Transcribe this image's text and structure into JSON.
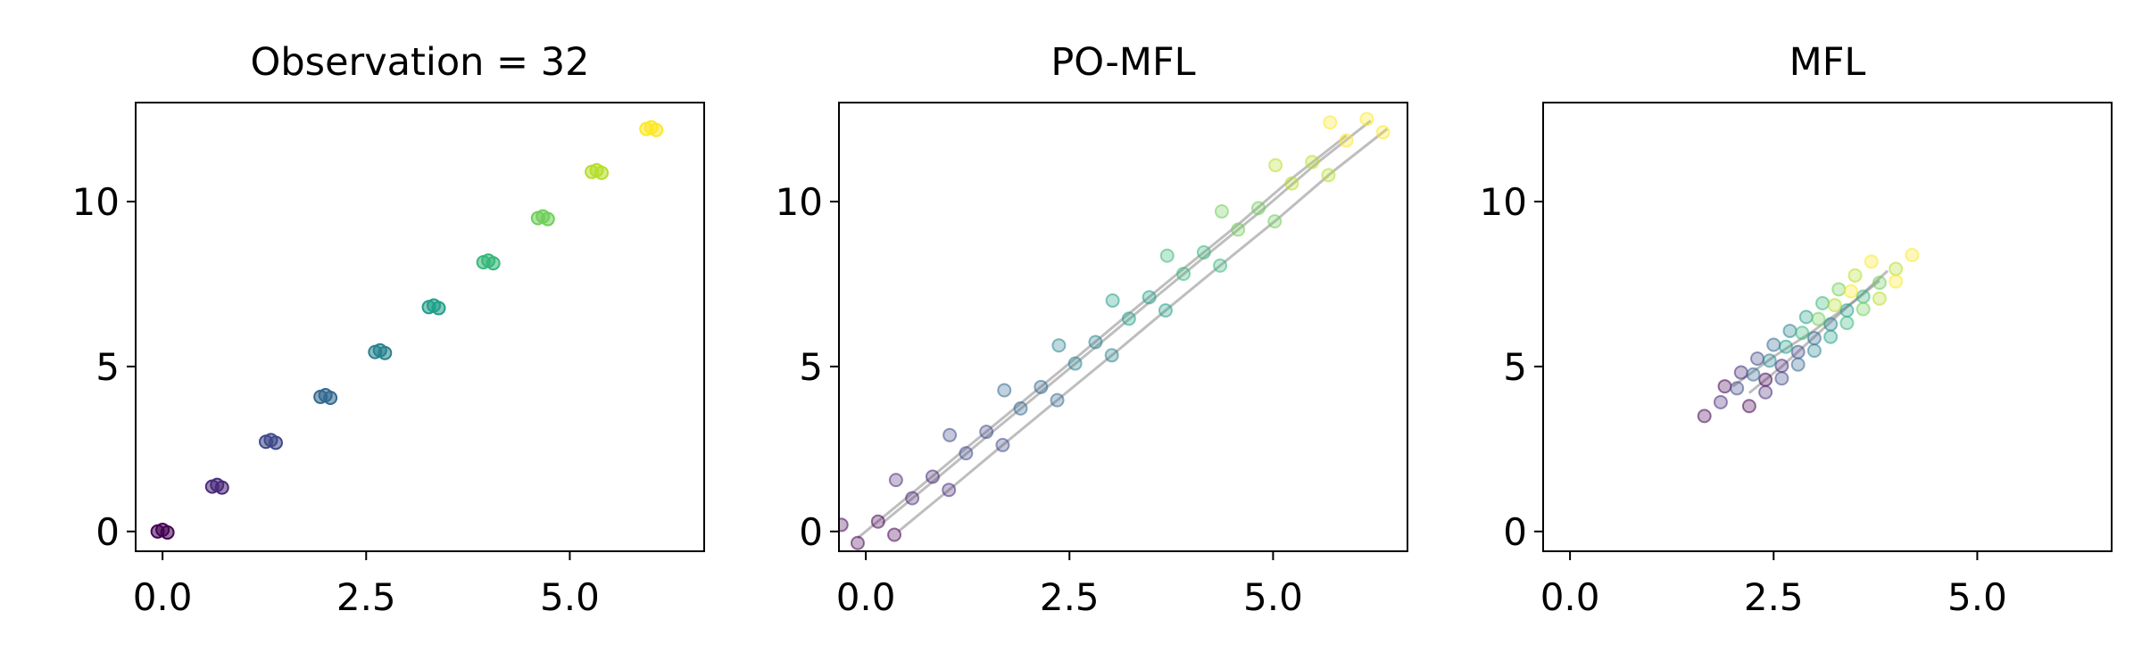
{
  "chart_data": [
    {
      "type": "scatter",
      "title": "Observation = 32",
      "alpha": 0.55,
      "xlim": [
        -0.33,
        6.65
      ],
      "ylim": [
        -0.6,
        13
      ],
      "xticks": [
        {
          "value": 0,
          "label": "0.0"
        },
        {
          "value": 2.5,
          "label": "2.5"
        },
        {
          "value": 5,
          "label": "5.0"
        }
      ],
      "yticks": [
        0,
        5,
        10
      ],
      "series": [
        {
          "color": "#440154",
          "x": [
            -0.06,
            0,
            0.06
          ],
          "values": [
            0,
            0.05,
            -0.03
          ]
        },
        {
          "color": "#482878",
          "x": [
            0.61,
            0.67,
            0.73
          ],
          "values": [
            1.36,
            1.41,
            1.33
          ]
        },
        {
          "color": "#3e4989",
          "x": [
            1.27,
            1.33,
            1.39
          ],
          "values": [
            2.72,
            2.77,
            2.69
          ]
        },
        {
          "color": "#31688e",
          "x": [
            1.94,
            2.0,
            2.06
          ],
          "values": [
            4.08,
            4.13,
            4.05
          ]
        },
        {
          "color": "#26828e",
          "x": [
            2.61,
            2.67,
            2.73
          ],
          "values": [
            5.44,
            5.49,
            5.41
          ]
        },
        {
          "color": "#1f9e89",
          "x": [
            3.27,
            3.33,
            3.39
          ],
          "values": [
            6.8,
            6.85,
            6.77
          ]
        },
        {
          "color": "#35b779",
          "x": [
            3.94,
            4.0,
            4.06
          ],
          "values": [
            8.16,
            8.21,
            8.13
          ]
        },
        {
          "color": "#6ece58",
          "x": [
            4.61,
            4.67,
            4.73
          ],
          "values": [
            9.5,
            9.55,
            9.47
          ]
        },
        {
          "color": "#b5de2b",
          "x": [
            5.27,
            5.33,
            5.39
          ],
          "values": [
            10.9,
            10.95,
            10.87
          ]
        },
        {
          "color": "#fde725",
          "x": [
            5.94,
            6.0,
            6.06
          ],
          "values": [
            12.2,
            12.25,
            12.17
          ]
        }
      ]
    },
    {
      "type": "scatter",
      "title": "PO-MFL",
      "alpha": 0.3,
      "xlim": [
        -0.33,
        6.65
      ],
      "ylim": [
        -0.6,
        13
      ],
      "xticks": [
        {
          "value": 0,
          "label": "0.0"
        },
        {
          "value": 2.5,
          "label": "2.5"
        },
        {
          "value": 5,
          "label": "5.0"
        }
      ],
      "yticks": [
        0,
        5,
        10
      ],
      "trajectories": [
        {
          "color": "#888888",
          "x": [
            -0.1,
            0.57,
            1.23,
            1.9,
            2.57,
            3.23,
            3.9,
            4.57,
            5.23,
            5.9
          ],
          "values": [
            -0.2,
            1.16,
            2.52,
            3.88,
            5.24,
            6.6,
            7.96,
            9.3,
            10.7,
            12.0
          ]
        },
        {
          "color": "#888888",
          "x": [
            0.2,
            0.87,
            1.53,
            2.2,
            2.87,
            3.53,
            4.2,
            4.87,
            5.53,
            6.2
          ],
          "values": [
            0.25,
            1.61,
            2.97,
            4.33,
            5.69,
            7.05,
            8.41,
            9.75,
            11.15,
            12.45
          ]
        },
        {
          "color": "#888888",
          "x": [
            0.4,
            1.07,
            1.73,
            2.4,
            3.07,
            3.73,
            4.4,
            5.07,
            5.73,
            6.4
          ],
          "values": [
            0,
            1.36,
            2.72,
            4.08,
            5.44,
            6.8,
            8.16,
            9.5,
            10.9,
            12.2
          ]
        }
      ],
      "series": [
        {
          "color": "#440154",
          "x": [
            -0.3,
            -0.1,
            0.15,
            0.35
          ],
          "values": [
            0.2,
            -0.35,
            0.3,
            -0.1
          ]
        },
        {
          "color": "#482878",
          "x": [
            0.37,
            0.57,
            0.82,
            1.02
          ],
          "values": [
            1.56,
            1.01,
            1.66,
            1.26
          ]
        },
        {
          "color": "#3e4989",
          "x": [
            1.03,
            1.23,
            1.48,
            1.68
          ],
          "values": [
            2.92,
            2.37,
            3.02,
            2.62
          ]
        },
        {
          "color": "#31688e",
          "x": [
            1.7,
            1.9,
            2.15,
            2.35
          ],
          "values": [
            4.28,
            3.73,
            4.38,
            3.98
          ]
        },
        {
          "color": "#26828e",
          "x": [
            2.37,
            2.57,
            2.82,
            3.02
          ],
          "values": [
            5.64,
            5.09,
            5.74,
            5.34
          ]
        },
        {
          "color": "#1f9e89",
          "x": [
            3.03,
            3.23,
            3.48,
            3.68
          ],
          "values": [
            7.0,
            6.45,
            7.1,
            6.7
          ]
        },
        {
          "color": "#35b779",
          "x": [
            3.7,
            3.9,
            4.15,
            4.35
          ],
          "values": [
            8.36,
            7.81,
            8.46,
            8.06
          ]
        },
        {
          "color": "#6ece58",
          "x": [
            4.37,
            4.57,
            4.82,
            5.02
          ],
          "values": [
            9.7,
            9.15,
            9.8,
            9.4
          ]
        },
        {
          "color": "#b5de2b",
          "x": [
            5.03,
            5.23,
            5.48,
            5.68
          ],
          "values": [
            11.1,
            10.55,
            11.2,
            10.8
          ]
        },
        {
          "color": "#fde725",
          "x": [
            5.7,
            5.9,
            6.15,
            6.35
          ],
          "values": [
            12.4,
            11.85,
            12.5,
            12.1
          ]
        }
      ]
    },
    {
      "type": "scatter",
      "title": "MFL",
      "alpha": 0.3,
      "xlim": [
        -0.33,
        6.65
      ],
      "ylim": [
        -0.6,
        13
      ],
      "xticks": [
        {
          "value": 0,
          "label": "0.0"
        },
        {
          "value": 2.5,
          "label": "2.5"
        },
        {
          "value": 5,
          "label": "5.0"
        }
      ],
      "yticks": [
        0,
        5,
        10
      ],
      "trajectories": [
        {
          "color": "#888888",
          "x": [
            2.2,
            2.6,
            3.0,
            3.4,
            3.8
          ],
          "values": [
            4.2,
            5.0,
            5.9,
            6.8,
            7.6
          ]
        },
        {
          "color": "#888888",
          "x": [
            2.0,
            2.5,
            3.0,
            3.5,
            3.9
          ],
          "values": [
            4.4,
            5.3,
            6.1,
            7.0,
            7.9
          ]
        }
      ],
      "series": [
        {
          "color": "#440154",
          "x": [
            1.65,
            1.9,
            2.2,
            2.4
          ],
          "values": [
            3.5,
            4.4,
            3.8,
            4.6
          ]
        },
        {
          "color": "#482878",
          "x": [
            1.85,
            2.1,
            2.4,
            2.6
          ],
          "values": [
            3.92,
            4.82,
            4.22,
            5.02
          ]
        },
        {
          "color": "#3e4989",
          "x": [
            2.05,
            2.3,
            2.6,
            2.8
          ],
          "values": [
            4.34,
            5.24,
            4.64,
            5.44
          ]
        },
        {
          "color": "#31688e",
          "x": [
            2.25,
            2.5,
            2.8,
            3.0
          ],
          "values": [
            4.76,
            5.66,
            5.06,
            5.86
          ]
        },
        {
          "color": "#26828e",
          "x": [
            2.45,
            2.7,
            3.0,
            3.2
          ],
          "values": [
            5.18,
            6.08,
            5.48,
            6.28
          ]
        },
        {
          "color": "#1f9e89",
          "x": [
            2.65,
            2.9,
            3.2,
            3.4
          ],
          "values": [
            5.6,
            6.5,
            5.9,
            6.7
          ]
        },
        {
          "color": "#35b779",
          "x": [
            2.85,
            3.1,
            3.4,
            3.6
          ],
          "values": [
            6.02,
            6.92,
            6.32,
            7.12
          ]
        },
        {
          "color": "#6ece58",
          "x": [
            3.05,
            3.3,
            3.6,
            3.8
          ],
          "values": [
            6.44,
            7.34,
            6.74,
            7.54
          ]
        },
        {
          "color": "#b5de2b",
          "x": [
            3.25,
            3.5,
            3.8,
            4.0
          ],
          "values": [
            6.86,
            7.76,
            7.06,
            7.96
          ]
        },
        {
          "color": "#fde725",
          "x": [
            3.45,
            3.7,
            4.0,
            4.2
          ],
          "values": [
            7.28,
            8.18,
            7.58,
            8.38
          ]
        }
      ]
    }
  ]
}
